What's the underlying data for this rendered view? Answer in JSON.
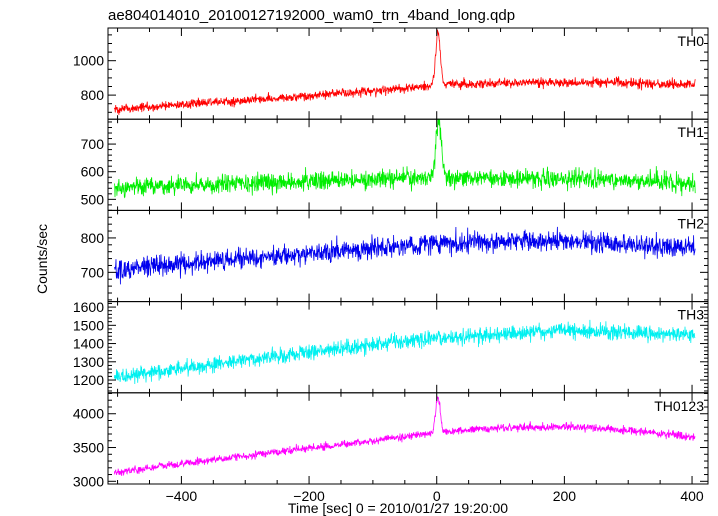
{
  "figure": {
    "title": "ae804014010_20100127192000_wam0_trn_4band_long.qdp",
    "ylabel": "Counts/sec",
    "xlabel": "Time [sec] 0 = 2010/01/27 19:20:00",
    "xlim": [
      -515,
      425
    ],
    "xticks": [
      -400,
      -200,
      0,
      200,
      400
    ],
    "x_minor_step": 50,
    "grid": false
  },
  "chart_data": [
    {
      "type": "line",
      "panel_label": "TH0",
      "color": "#ff0000",
      "ylim": [
        660,
        1190
      ],
      "yticks": [
        800,
        1000
      ],
      "y_minor_step": 50,
      "x_range": [
        -505,
        405
      ],
      "trend_x": [
        -505,
        -400,
        -300,
        -200,
        -100,
        -20,
        20,
        100,
        200,
        300,
        405
      ],
      "trend_y": [
        715,
        745,
        770,
        795,
        825,
        850,
        860,
        870,
        875,
        870,
        860
      ],
      "noise_sd": 26,
      "spike": {
        "x": 2,
        "peak": 1165,
        "width": 5
      }
    },
    {
      "type": "line",
      "panel_label": "TH1",
      "color": "#00ee00",
      "ylim": [
        460,
        790
      ],
      "yticks": [
        500,
        600,
        700
      ],
      "y_minor_step": 20,
      "x_range": [
        -505,
        405
      ],
      "trend_x": [
        -505,
        -400,
        -200,
        0,
        200,
        405
      ],
      "trend_y": [
        540,
        550,
        565,
        580,
        575,
        560
      ],
      "noise_sd": 32,
      "spike": {
        "x": 3,
        "peak": 790,
        "width": 6
      }
    },
    {
      "type": "line",
      "panel_label": "TH2",
      "color": "#0000ee",
      "ylim": [
        615,
        880
      ],
      "yticks": [
        700,
        800
      ],
      "y_minor_step": 20,
      "x_range": [
        -505,
        405
      ],
      "trend_x": [
        -505,
        -400,
        -200,
        0,
        200,
        405
      ],
      "trend_y": [
        705,
        725,
        755,
        785,
        790,
        770
      ],
      "noise_sd": 30,
      "spike": null
    },
    {
      "type": "line",
      "panel_label": "TH3",
      "color": "#00f0f0",
      "ylim": [
        1130,
        1630
      ],
      "yticks": [
        1200,
        1300,
        1400,
        1500,
        1600
      ],
      "y_minor_step": 20,
      "x_range": [
        -505,
        405
      ],
      "trend_x": [
        -505,
        -400,
        -200,
        0,
        200,
        405
      ],
      "trend_y": [
        1215,
        1265,
        1355,
        1430,
        1470,
        1450
      ],
      "noise_sd": 42,
      "spike": null
    },
    {
      "type": "line",
      "panel_label": "TH0123",
      "color": "#ff00ff",
      "ylim": [
        2960,
        4310
      ],
      "yticks": [
        3000,
        3500,
        4000
      ],
      "y_minor_step": 100,
      "x_range": [
        -505,
        405
      ],
      "trend_x": [
        -505,
        -400,
        -300,
        -200,
        -100,
        0,
        100,
        200,
        300,
        405
      ],
      "trend_y": [
        3130,
        3260,
        3380,
        3490,
        3600,
        3720,
        3790,
        3810,
        3760,
        3650
      ],
      "noise_sd": 55,
      "spike": {
        "x": 2,
        "peak": 4240,
        "width": 5
      }
    }
  ]
}
